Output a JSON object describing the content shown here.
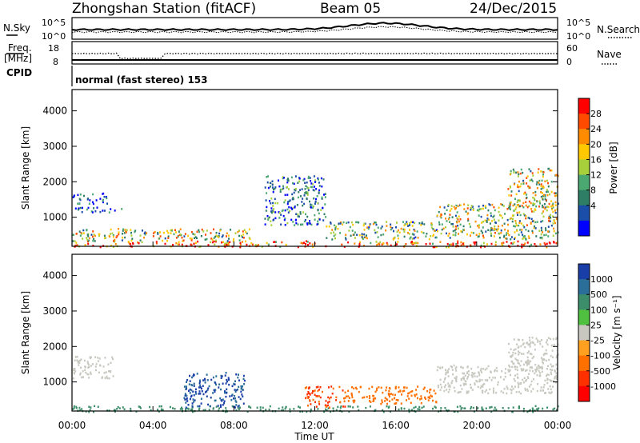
{
  "header": {
    "station": "Zhongshan Station (fitACF)",
    "beam": "Beam 05",
    "date": "24/Dec/2015"
  },
  "top_panels": {
    "nsky_label": "N.Sky",
    "nsky_ticks": [
      "10^5",
      "10^0"
    ],
    "nsearch_label": "N.Search",
    "nsearch_ticks": [
      "10^5",
      "10^0"
    ],
    "freq_label": "Freq.",
    "freq_unit": "[MHz]",
    "freq_ticks": [
      "18",
      "8"
    ],
    "nave_label": "Nave",
    "nave_ticks": [
      "60",
      "0"
    ],
    "cpid_label": "CPID",
    "cpid_text": "normal (fast stereo) 153"
  },
  "power_panel": {
    "ylabel": "Slant Range [km]",
    "yticks": [
      "4000",
      "3000",
      "2000",
      "1000"
    ],
    "cbar_label": "Power [dB]",
    "cbar_ticks": [
      "28",
      "24",
      "20",
      "16",
      "12",
      "8",
      "4"
    ],
    "cbar_colors": [
      "#ff0000",
      "#ff4a00",
      "#ff8c00",
      "#ffc800",
      "#a8d03a",
      "#4aa870",
      "#2e7e66",
      "#1a4ea8",
      "#0000ff"
    ]
  },
  "velocity_panel": {
    "ylabel": "Slant Range [km]",
    "yticks": [
      "4000",
      "3000",
      "2000",
      "1000"
    ],
    "cbar_label": "Velocity [m s⁻¹]",
    "cbar_ticks": [
      "1000",
      "500",
      "100",
      "25",
      "-25",
      "-100",
      "-500",
      "-1000"
    ],
    "cbar_colors": [
      "#1a3ea8",
      "#2c6e9a",
      "#3c8e6a",
      "#50c040",
      "#c8c8c0",
      "#ffa020",
      "#ff7000",
      "#ff3000",
      "#ff0000"
    ]
  },
  "xaxis": {
    "ticks": [
      "00:00",
      "04:00",
      "08:00",
      "12:00",
      "16:00",
      "20:00",
      "00:00"
    ],
    "label": "Time UT"
  },
  "chart_data": [
    {
      "type": "heatmap",
      "title": "Power",
      "xlabel": "Time UT",
      "ylabel": "Slant Range [km]",
      "xlim": [
        0,
        24
      ],
      "ylim": [
        180,
        4600
      ],
      "zlabel": "Power [dB]",
      "zticks": [
        4,
        8,
        12,
        16,
        20,
        24,
        28
      ],
      "regions": [
        {
          "t0": 0.0,
          "t1": 24.0,
          "r0": 180,
          "r1": 350,
          "level": 26
        },
        {
          "t0": 0.0,
          "t1": 9.0,
          "r0": 350,
          "r1": 700,
          "level": 18
        },
        {
          "t0": 0.0,
          "t1": 1.8,
          "r0": 1400,
          "r1": 1700,
          "level": 8
        },
        {
          "t0": 0.0,
          "t1": 2.5,
          "r0": 1150,
          "r1": 1300,
          "level": 6
        },
        {
          "t0": 9.5,
          "t1": 12.5,
          "r0": 800,
          "r1": 2200,
          "level": 10
        },
        {
          "t0": 12.5,
          "t1": 18.0,
          "r0": 400,
          "r1": 900,
          "level": 14
        },
        {
          "t0": 18.0,
          "t1": 24.0,
          "r0": 400,
          "r1": 1400,
          "level": 16
        },
        {
          "t0": 21.5,
          "t1": 24.0,
          "r0": 1300,
          "r1": 2400,
          "level": 18
        }
      ]
    },
    {
      "type": "heatmap",
      "title": "Velocity",
      "xlabel": "Time UT",
      "ylabel": "Slant Range [km]",
      "xlim": [
        0,
        24
      ],
      "ylim": [
        180,
        4600
      ],
      "zlabel": "Velocity [m s⁻¹]",
      "zticks": [
        -1000,
        -500,
        -100,
        -25,
        25,
        100,
        500,
        1000
      ],
      "regions": [
        {
          "t0": 0.0,
          "t1": 24.0,
          "r0": 180,
          "r1": 350,
          "level": 100
        },
        {
          "t0": 0.0,
          "t1": 2.0,
          "r0": 1100,
          "r1": 1750,
          "level": 0
        },
        {
          "t0": 5.5,
          "t1": 8.5,
          "r0": 300,
          "r1": 1300,
          "level": 800
        },
        {
          "t0": 11.5,
          "t1": 13.5,
          "r0": 300,
          "r1": 900,
          "level": -500
        },
        {
          "t0": 13.5,
          "t1": 18.0,
          "r0": 400,
          "r1": 900,
          "level": -200
        },
        {
          "t0": 18.0,
          "t1": 24.0,
          "r0": 700,
          "r1": 1500,
          "level": 0
        },
        {
          "t0": 21.5,
          "t1": 24.0,
          "r0": 1300,
          "r1": 2300,
          "level": 0
        }
      ]
    }
  ]
}
